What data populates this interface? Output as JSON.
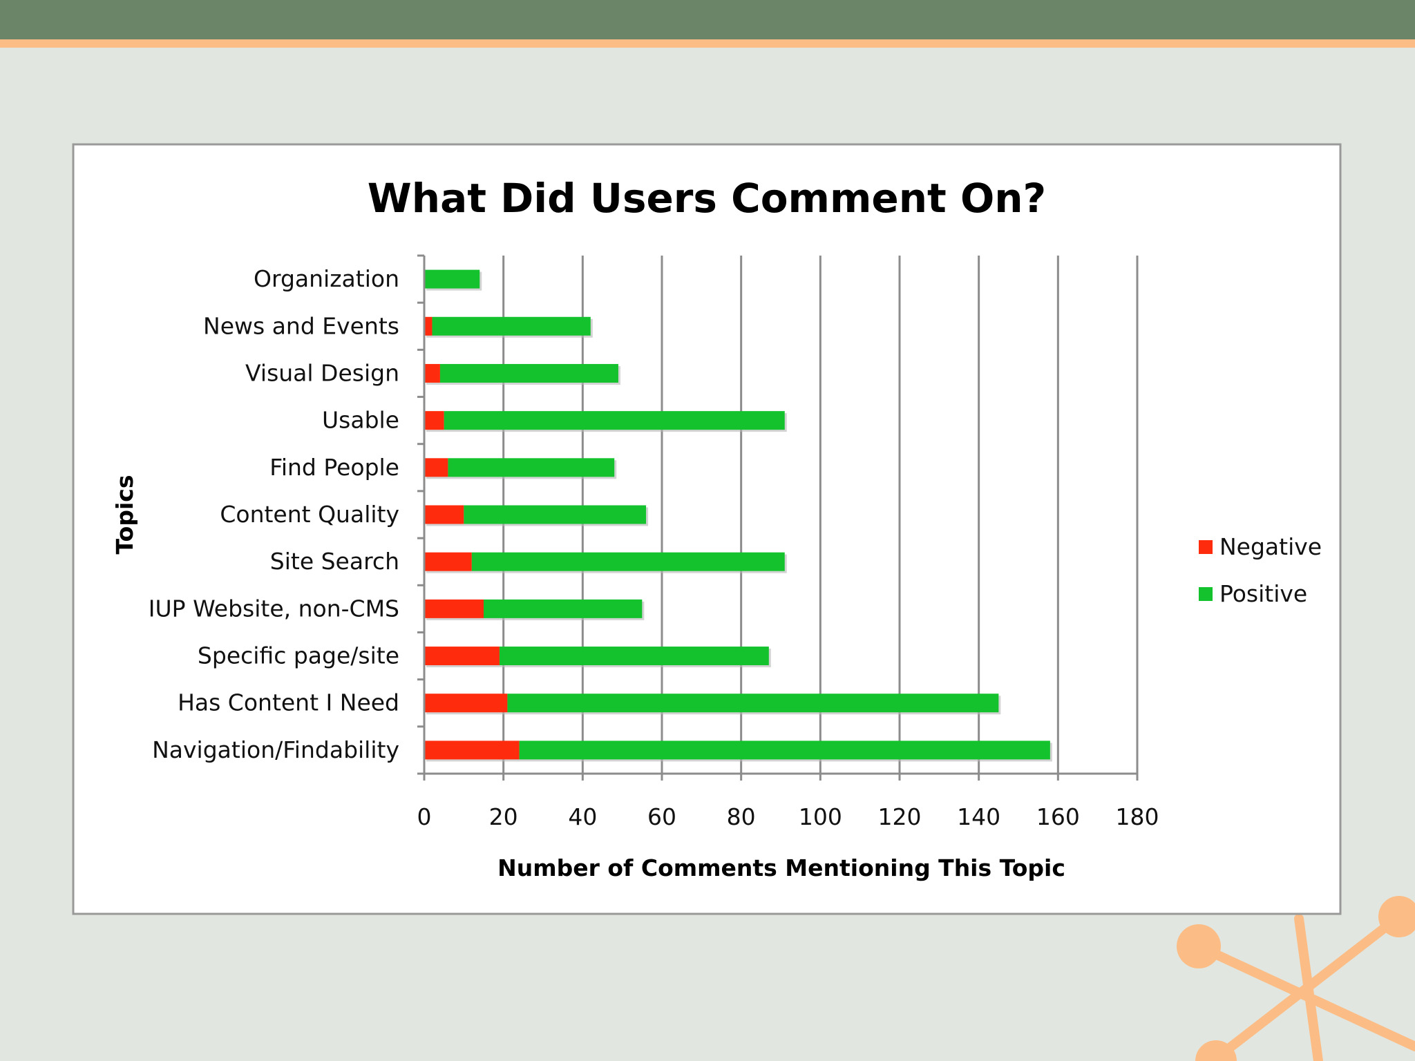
{
  "colors": {
    "negative": "#fe2b0c",
    "positive": "#14c22d",
    "header_bar": "#6b8568",
    "header_stripe": "#fbbd85",
    "background": "#e2e6e0",
    "decoration": "#fbbd85"
  },
  "chart_data": {
    "type": "bar",
    "orientation": "horizontal",
    "stacked": true,
    "title": "What Did Users Comment On?",
    "xlabel": "Number of Comments Mentioning This Topic",
    "ylabel": "Topics",
    "xlim": [
      0,
      180
    ],
    "xticks": [
      0,
      20,
      40,
      60,
      80,
      100,
      120,
      140,
      160,
      180
    ],
    "grid": "vertical",
    "legend_position": "right",
    "categories": [
      "Organization",
      "News and Events",
      "Visual Design",
      "Usable",
      "Find People",
      "Content Quality",
      "Site Search",
      "IUP Website, non-CMS",
      "Specific page/site",
      "Has Content I Need",
      "Navigation/Findability"
    ],
    "series": [
      {
        "name": "Negative",
        "values": [
          0,
          2,
          4,
          5,
          6,
          10,
          12,
          15,
          19,
          21,
          24
        ]
      },
      {
        "name": "Positive",
        "values": [
          14,
          40,
          45,
          86,
          42,
          46,
          79,
          40,
          68,
          124,
          134
        ]
      }
    ]
  }
}
